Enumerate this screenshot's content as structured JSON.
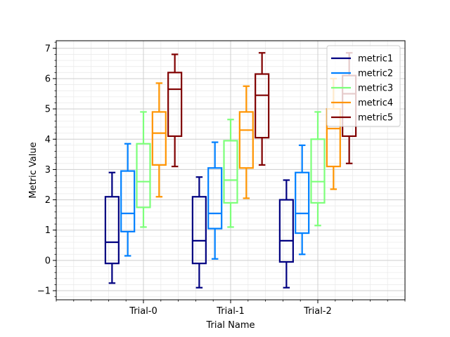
{
  "chart_data": {
    "type": "box",
    "title": "",
    "xlabel": "Trial Name",
    "ylabel": "Metric Value",
    "categories": [
      "Trial-0",
      "Trial-1",
      "Trial-2"
    ],
    "ylim": [
      -1.3,
      7.25
    ],
    "yticks": [
      -1,
      0,
      1,
      2,
      3,
      4,
      5,
      6,
      7
    ],
    "ytick_labels": [
      "−1",
      "0",
      "1",
      "2",
      "3",
      "4",
      "5",
      "6",
      "7"
    ],
    "grid": true,
    "minor_grid": true,
    "legend": {
      "position": "top-right"
    },
    "series": [
      {
        "name": "metric1",
        "color": "#000080",
        "boxes": [
          {
            "whisker_low": -0.75,
            "q1": -0.1,
            "median": 0.6,
            "q3": 2.1,
            "whisker_high": 2.9
          },
          {
            "whisker_low": -0.9,
            "q1": -0.1,
            "median": 0.65,
            "q3": 2.1,
            "whisker_high": 2.75
          },
          {
            "whisker_low": -0.9,
            "q1": -0.05,
            "median": 0.65,
            "q3": 2.0,
            "whisker_high": 2.65
          }
        ]
      },
      {
        "name": "metric2",
        "color": "#0080ff",
        "boxes": [
          {
            "whisker_low": 0.15,
            "q1": 0.95,
            "median": 1.55,
            "q3": 2.95,
            "whisker_high": 3.85
          },
          {
            "whisker_low": 0.05,
            "q1": 1.05,
            "median": 1.55,
            "q3": 3.05,
            "whisker_high": 3.9
          },
          {
            "whisker_low": 0.2,
            "q1": 0.9,
            "median": 1.55,
            "q3": 2.9,
            "whisker_high": 3.8
          }
        ]
      },
      {
        "name": "metric3",
        "color": "#7dff7a",
        "boxes": [
          {
            "whisker_low": 1.1,
            "q1": 1.75,
            "median": 2.6,
            "q3": 3.85,
            "whisker_high": 4.9
          },
          {
            "whisker_low": 1.1,
            "q1": 1.9,
            "median": 2.65,
            "q3": 3.95,
            "whisker_high": 4.65
          },
          {
            "whisker_low": 1.15,
            "q1": 1.9,
            "median": 2.6,
            "q3": 4.0,
            "whisker_high": 4.9
          }
        ]
      },
      {
        "name": "metric4",
        "color": "#ff9400",
        "boxes": [
          {
            "whisker_low": 2.1,
            "q1": 3.15,
            "median": 4.2,
            "q3": 4.9,
            "whisker_high": 5.85
          },
          {
            "whisker_low": 2.05,
            "q1": 3.05,
            "median": 4.3,
            "q3": 4.9,
            "whisker_high": 5.75
          },
          {
            "whisker_low": 2.35,
            "q1": 3.1,
            "median": 4.35,
            "q3": 5.0,
            "whisker_high": 6.0
          }
        ]
      },
      {
        "name": "metric5",
        "color": "#800000",
        "boxes": [
          {
            "whisker_low": 3.1,
            "q1": 4.1,
            "median": 5.65,
            "q3": 6.2,
            "whisker_high": 6.8
          },
          {
            "whisker_low": 3.15,
            "q1": 4.05,
            "median": 5.45,
            "q3": 6.15,
            "whisker_high": 6.85
          },
          {
            "whisker_low": 3.2,
            "q1": 4.1,
            "median": 5.5,
            "q3": 6.1,
            "whisker_high": 6.85
          }
        ]
      }
    ]
  }
}
